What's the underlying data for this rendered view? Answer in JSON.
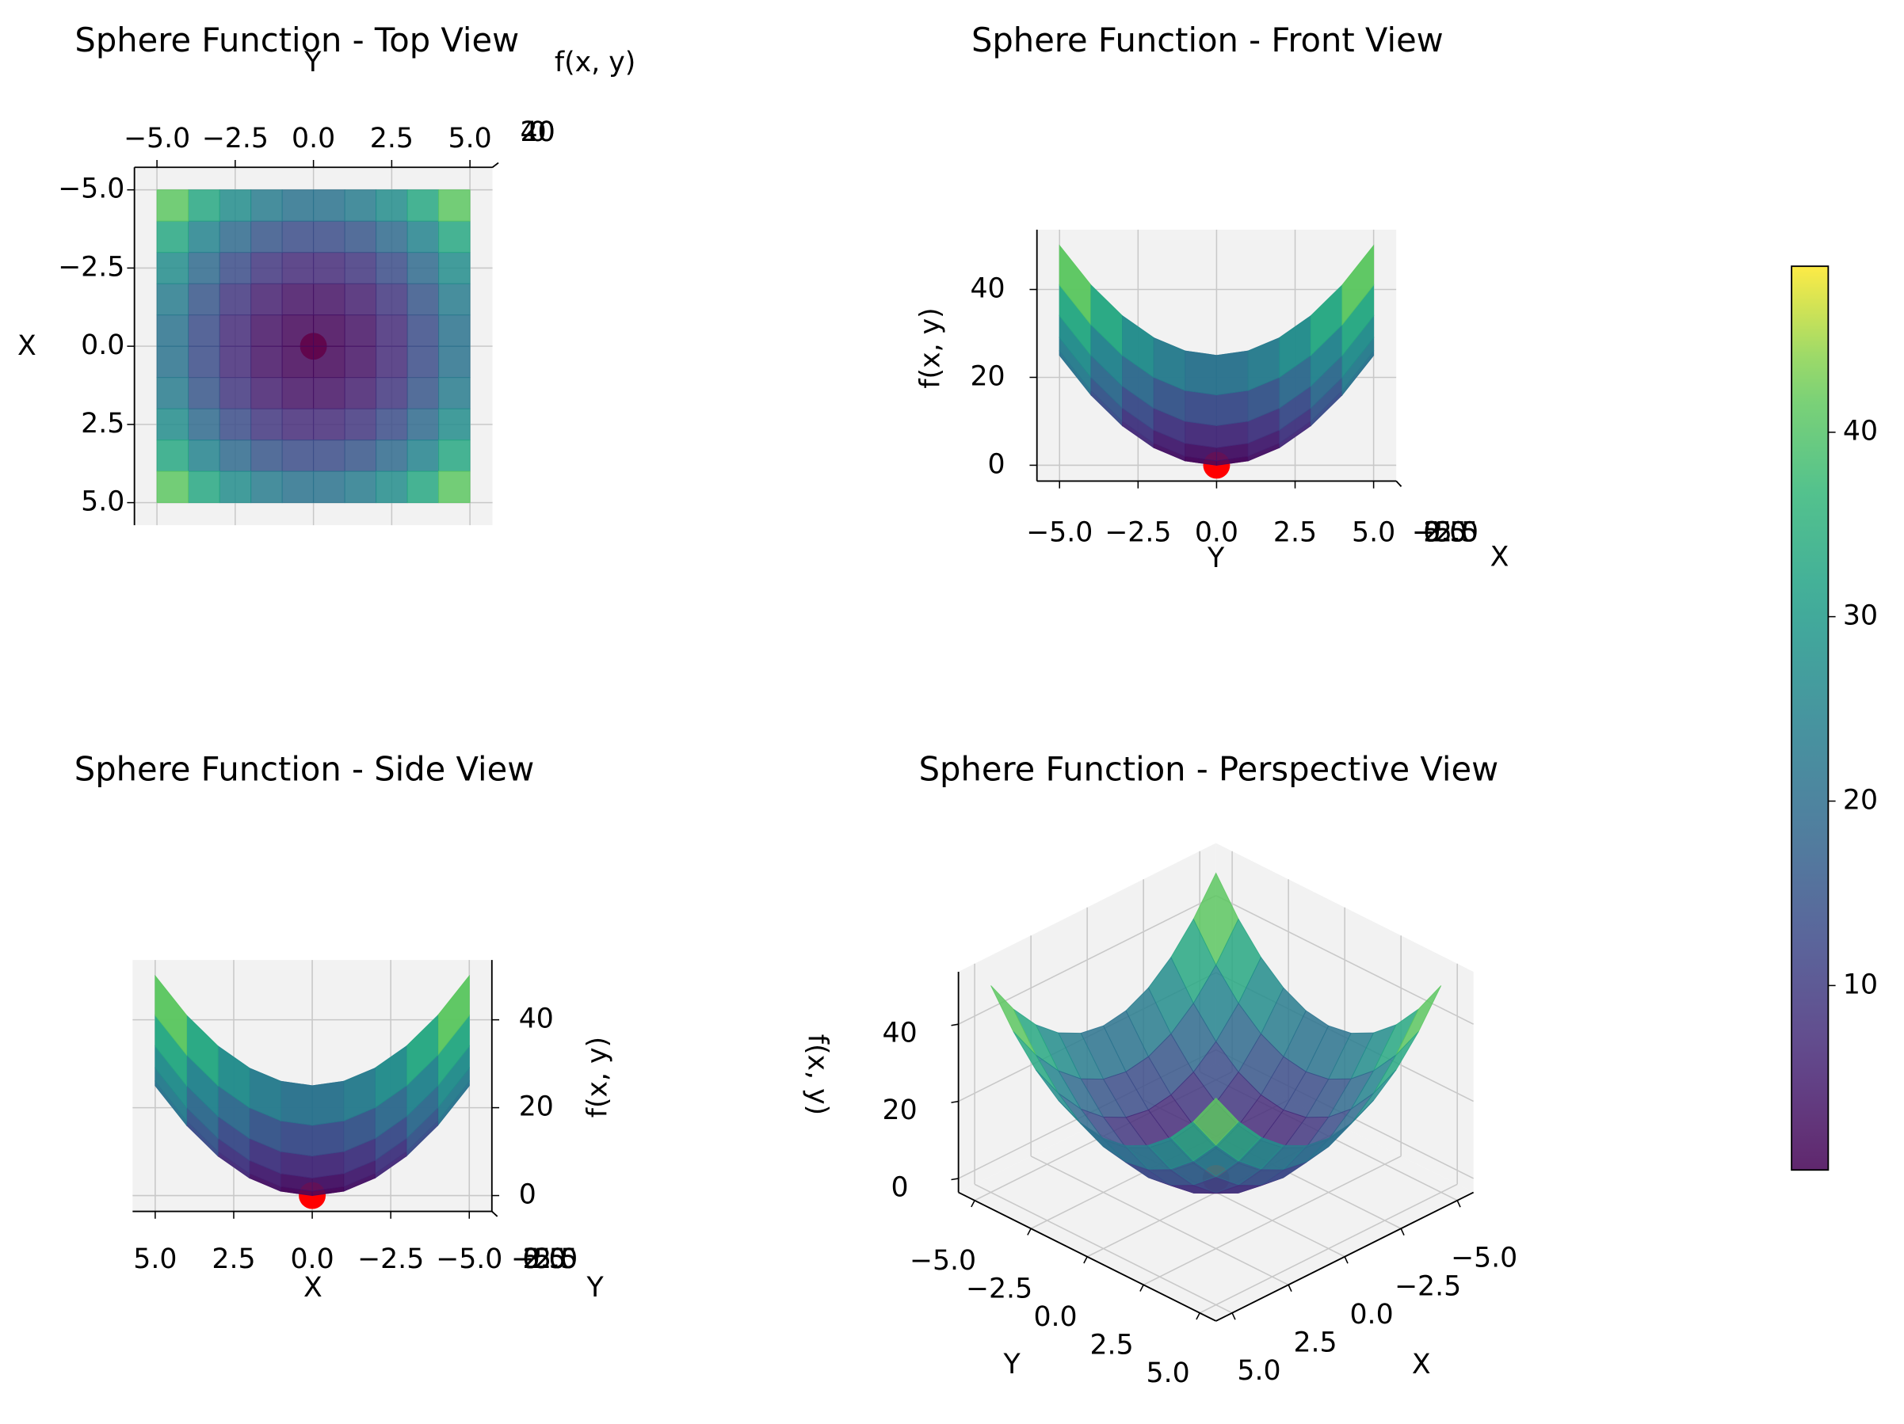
{
  "surface": {
    "x": [
      -5,
      -4,
      -3,
      -2,
      -1,
      0,
      1,
      2,
      3,
      4,
      5
    ],
    "y": [
      -5,
      -4,
      -3,
      -2,
      -1,
      0,
      1,
      2,
      3,
      4,
      5
    ],
    "z": [
      [
        50,
        41,
        34,
        29,
        26,
        25,
        26,
        29,
        34,
        41,
        50
      ],
      [
        41,
        32,
        25,
        20,
        17,
        16,
        17,
        20,
        25,
        32,
        41
      ],
      [
        34,
        25,
        18,
        13,
        10,
        9,
        10,
        13,
        18,
        25,
        34
      ],
      [
        29,
        20,
        13,
        8,
        5,
        4,
        5,
        8,
        13,
        20,
        29
      ],
      [
        26,
        17,
        10,
        5,
        2,
        1,
        2,
        5,
        10,
        17,
        26
      ],
      [
        25,
        16,
        9,
        4,
        1,
        0,
        1,
        4,
        9,
        16,
        25
      ],
      [
        26,
        17,
        10,
        5,
        2,
        1,
        2,
        5,
        10,
        17,
        26
      ],
      [
        29,
        20,
        13,
        8,
        5,
        4,
        5,
        8,
        13,
        20,
        29
      ],
      [
        34,
        25,
        18,
        13,
        10,
        9,
        10,
        13,
        18,
        25,
        34
      ],
      [
        41,
        32,
        25,
        20,
        17,
        16,
        17,
        20,
        25,
        32,
        41
      ],
      [
        50,
        41,
        34,
        29,
        26,
        25,
        26,
        29,
        34,
        41,
        50
      ]
    ]
  },
  "minimum": {
    "x": 0,
    "y": 0,
    "z": 0,
    "color": "#ff0000"
  },
  "chart_data": [
    {
      "type": "surface3d",
      "title": "Sphere Function - Top View",
      "xlabel": "X",
      "ylabel": "Y",
      "zlabel": "f(x, y)",
      "view": {
        "elev": 90,
        "azim": 0
      },
      "grid": true,
      "xlim": [
        -5.72,
        5.72
      ],
      "ylim": [
        -5.72,
        5.72
      ],
      "zlim": [
        -3.6,
        53.6
      ],
      "xticks": [
        {
          "value": -5,
          "label": "−5.0"
        },
        {
          "value": -2.5,
          "label": "−2.5"
        },
        {
          "value": 0,
          "label": "0.0"
        },
        2.5,
        {
          "value": 5,
          "label": "5.0"
        }
      ],
      "yticks": [
        {
          "value": -5,
          "label": "−5.0"
        },
        {
          "value": -2.5,
          "label": "−2.5"
        },
        {
          "value": 0,
          "label": "0.0"
        },
        2.5,
        {
          "value": 5,
          "label": "5.0"
        }
      ],
      "zticks": [
        0,
        20,
        40
      ]
    },
    {
      "type": "surface3d",
      "title": "Sphere Function - Front View",
      "xlabel": "X",
      "ylabel": "Y",
      "zlabel": "f(x, y)",
      "view": {
        "elev": 0,
        "azim": 0
      },
      "grid": true,
      "xlim": [
        -5.72,
        5.72
      ],
      "ylim": [
        -5.72,
        5.72
      ],
      "zlim": [
        -3.6,
        53.6
      ],
      "xticks": [
        {
          "value": -5,
          "label": "−5.0"
        },
        {
          "value": -2.5,
          "label": "−2.5"
        },
        {
          "value": 0,
          "label": "0.0"
        },
        2.5,
        {
          "value": 5,
          "label": "5.0"
        }
      ],
      "yticks": [
        {
          "value": -5,
          "label": "−5.0"
        },
        {
          "value": -2.5,
          "label": "−2.5"
        },
        {
          "value": 0,
          "label": "0.0"
        },
        2.5,
        {
          "value": 5,
          "label": "5.0"
        }
      ],
      "zticks": [
        0,
        20,
        40
      ]
    },
    {
      "type": "surface3d",
      "title": "Sphere Function - Side View",
      "xlabel": "X",
      "ylabel": "Y",
      "zlabel": "f(x, y)",
      "view": {
        "elev": 0,
        "azim": 90
      },
      "grid": true,
      "xlim": [
        -5.72,
        5.72
      ],
      "ylim": [
        -5.72,
        5.72
      ],
      "zlim": [
        -3.6,
        53.6
      ],
      "xticks": [
        {
          "value": -5,
          "label": "−5.0"
        },
        {
          "value": -2.5,
          "label": "−2.5"
        },
        {
          "value": 0,
          "label": "0.0"
        },
        2.5,
        {
          "value": 5,
          "label": "5.0"
        }
      ],
      "yticks": [
        {
          "value": -5,
          "label": "−5.0"
        },
        {
          "value": -2.5,
          "label": "−2.5"
        },
        {
          "value": 0,
          "label": "0.0"
        },
        2.5,
        {
          "value": 5,
          "label": "5.0"
        }
      ],
      "zticks": [
        0,
        20,
        40
      ]
    },
    {
      "type": "surface3d",
      "title": "Sphere Function - Perspective View",
      "xlabel": "X",
      "ylabel": "Y",
      "zlabel": "f(x, y)",
      "view": {
        "elev": 30,
        "azim": 45
      },
      "grid": true,
      "xlim": [
        -5.72,
        5.72
      ],
      "ylim": [
        -5.72,
        5.72
      ],
      "zlim": [
        -3.6,
        53.6
      ],
      "xticks": [
        {
          "value": -5,
          "label": "−5.0"
        },
        {
          "value": -2.5,
          "label": "−2.5"
        },
        {
          "value": 0,
          "label": "0.0"
        },
        2.5,
        {
          "value": 5,
          "label": "5.0"
        }
      ],
      "yticks": [
        {
          "value": -5,
          "label": "−5.0"
        },
        {
          "value": -2.5,
          "label": "−2.5"
        },
        {
          "value": 0,
          "label": "0.0"
        },
        2.5,
        {
          "value": 5,
          "label": "5.0"
        }
      ],
      "zticks": [
        0,
        20,
        40
      ]
    }
  ],
  "colorbar": {
    "colormap": "viridis",
    "clim": [
      0,
      49
    ],
    "ticks": [
      10,
      20,
      30,
      40
    ]
  }
}
